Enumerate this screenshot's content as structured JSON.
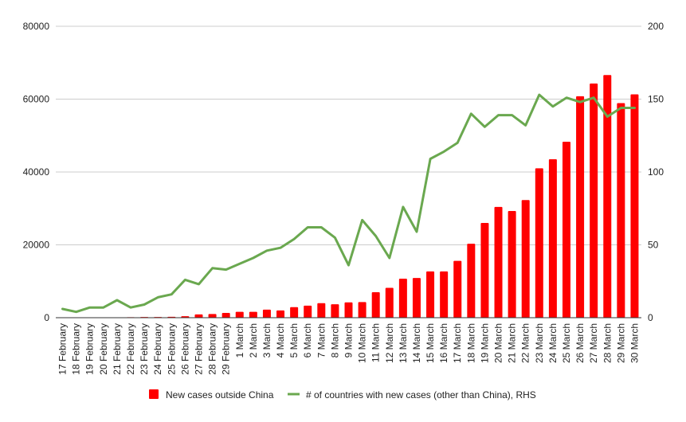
{
  "chart_data": {
    "type": "bar",
    "categories": [
      "17 February",
      "18 February",
      "19 February",
      "20 February",
      "21 February",
      "22 February",
      "23 February",
      "24 February",
      "25 February",
      "26 February",
      "27 February",
      "28 February",
      "29 February",
      "1 March",
      "2 March",
      "3 March",
      "4 March",
      "5 March",
      "6 March",
      "7 March",
      "8 March",
      "9 March",
      "10 March",
      "11 March",
      "12 March",
      "13 March",
      "14 March",
      "15 March",
      "16 March",
      "17 March",
      "18 March",
      "19 March",
      "20 March",
      "21 March",
      "22 March",
      "23 March",
      "24 March",
      "25 March",
      "26 March",
      "27 March",
      "28 March",
      "29 March",
      "30 March"
    ],
    "series": [
      {
        "name": "New cases outside China",
        "type": "bar",
        "axis": "left",
        "values": [
          50,
          30,
          60,
          50,
          80,
          150,
          200,
          200,
          250,
          400,
          900,
          1000,
          1300,
          1600,
          1600,
          2200,
          2000,
          2900,
          3300,
          4000,
          3700,
          4200,
          4300,
          7000,
          8200,
          10700,
          10900,
          12700,
          12700,
          15600,
          20300,
          26000,
          30400,
          29300,
          32300,
          41000,
          43500,
          48300,
          60800,
          64300,
          66600,
          58900,
          61300
        ]
      },
      {
        "name": "# of countries with new cases (other than China), RHS",
        "type": "line",
        "axis": "right",
        "values": [
          6,
          4,
          7,
          7,
          12,
          7,
          9,
          14,
          16,
          26,
          23,
          34,
          33,
          37,
          41,
          46,
          48,
          54,
          62,
          62,
          55,
          36,
          67,
          56,
          41,
          76,
          59,
          109,
          114,
          120,
          140,
          131,
          139,
          139,
          132,
          153,
          145,
          151,
          148,
          151,
          138,
          144,
          144
        ]
      }
    ],
    "ylim_left": [
      0,
      80000
    ],
    "yticks_left": [
      0,
      20000,
      40000,
      60000,
      80000
    ],
    "ylim_right": [
      0,
      200
    ],
    "yticks_right": [
      0,
      50,
      100,
      150,
      200
    ],
    "grid": true,
    "legend_position": "bottom",
    "colors": {
      "bar": "#ff0000",
      "line": "#6aa84f",
      "grid": "#cccccc"
    }
  }
}
